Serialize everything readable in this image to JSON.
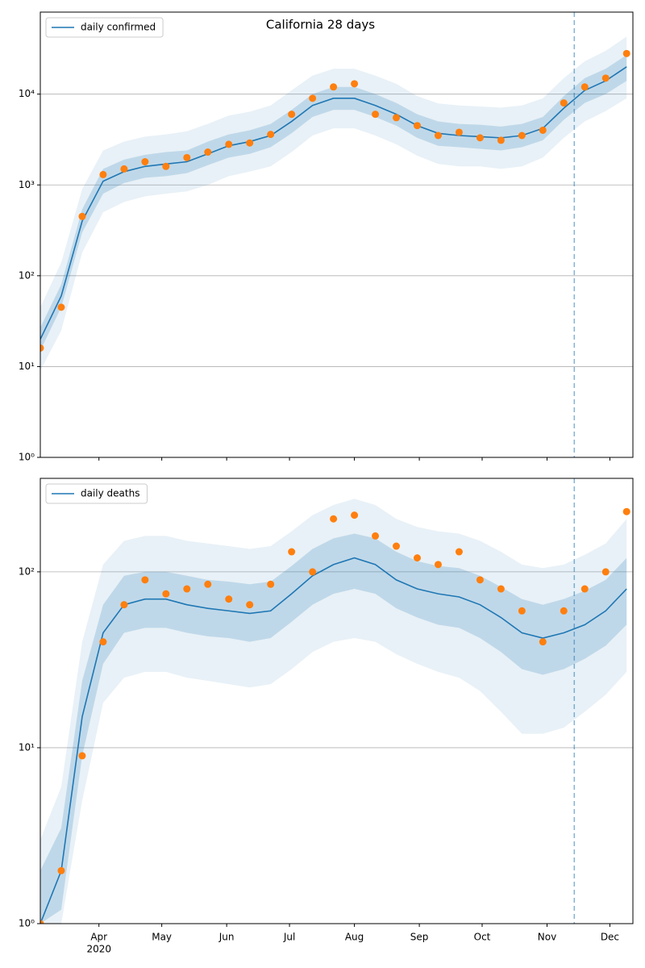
{
  "chart_data": [
    {
      "type": "line",
      "title": "California 28 days",
      "log_y": true,
      "grid": true,
      "legend": "upper left",
      "x": [
        64,
        74,
        84,
        94,
        104,
        114,
        124,
        134,
        144,
        154,
        164,
        174,
        184,
        194,
        204,
        214,
        224,
        234,
        244,
        254,
        264,
        274,
        284,
        294,
        304,
        314,
        324,
        334,
        344
      ],
      "xlim": [
        64,
        347
      ],
      "xticks": [
        92,
        122,
        153,
        183,
        214,
        245,
        275,
        306,
        336
      ],
      "ylim": [
        1,
        80000
      ],
      "yticks": [
        {
          "value": 1,
          "label": "10⁰"
        },
        {
          "value": 10,
          "label": "10¹"
        },
        {
          "value": 100,
          "label": "10²"
        },
        {
          "value": 1000,
          "label": "10³"
        },
        {
          "value": 10000,
          "label": "10⁴"
        }
      ],
      "series": [
        {
          "name": "daily confirmed",
          "color": "#1f77b4",
          "values": [
            20,
            60,
            400,
            1100,
            1400,
            1600,
            1700,
            1800,
            2200,
            2700,
            3000,
            3500,
            5000,
            7500,
            9000,
            9000,
            7500,
            6000,
            4500,
            3700,
            3500,
            3400,
            3300,
            3500,
            4200,
            7000,
            11000,
            14000,
            20000
          ]
        }
      ],
      "bands": [
        {
          "color": "#1f77b4",
          "opacity": 0.1,
          "lower": [
            9,
            25,
            180,
            500,
            650,
            750,
            800,
            850,
            1000,
            1250,
            1400,
            1600,
            2300,
            3500,
            4200,
            4200,
            3500,
            2800,
            2100,
            1700,
            1600,
            1600,
            1500,
            1600,
            2000,
            3300,
            5000,
            6500,
            9000
          ],
          "upper": [
            45,
            140,
            900,
            2400,
            3000,
            3400,
            3600,
            3900,
            4700,
            5800,
            6400,
            7500,
            11000,
            16000,
            19000,
            19000,
            16000,
            13000,
            9500,
            7900,
            7500,
            7300,
            7100,
            7500,
            9000,
            15000,
            23000,
            30000,
            43000
          ]
        },
        {
          "color": "#1f77b4",
          "opacity": 0.2,
          "lower": [
            15,
            45,
            300,
            800,
            1050,
            1200,
            1250,
            1350,
            1650,
            2000,
            2200,
            2600,
            3700,
            5600,
            6700,
            6700,
            5600,
            4500,
            3300,
            2700,
            2600,
            2500,
            2400,
            2600,
            3100,
            5200,
            8000,
            10000,
            14000
          ],
          "upper": [
            27,
            80,
            540,
            1500,
            1900,
            2150,
            2300,
            2400,
            3000,
            3600,
            4000,
            4700,
            6700,
            10000,
            12000,
            12000,
            10000,
            8000,
            6000,
            5000,
            4700,
            4600,
            4400,
            4700,
            5600,
            9500,
            15000,
            19000,
            27000
          ]
        }
      ],
      "points": {
        "color": "#ff7f0e",
        "values": [
          16,
          45,
          450,
          1300,
          1500,
          1800,
          1600,
          2000,
          2300,
          2800,
          2900,
          3600,
          6000,
          9000,
          12000,
          13000,
          6000,
          5500,
          4500,
          3500,
          3800,
          3300,
          3100,
          3500,
          4000,
          8000,
          12000,
          15000,
          28000
        ]
      },
      "vline": {
        "value": 319,
        "color": "#1f77b4"
      }
    },
    {
      "type": "line",
      "log_y": true,
      "grid": true,
      "legend": "upper left",
      "x": [
        64,
        74,
        84,
        94,
        104,
        114,
        124,
        134,
        144,
        154,
        164,
        174,
        184,
        194,
        204,
        214,
        224,
        234,
        244,
        254,
        264,
        274,
        284,
        294,
        304,
        314,
        324,
        334,
        344
      ],
      "xlim": [
        64,
        347
      ],
      "xticks": [
        {
          "value": 92,
          "label": "Apr"
        },
        {
          "value": 122,
          "label": "May"
        },
        {
          "value": 153,
          "label": "Jun"
        },
        {
          "value": 183,
          "label": "Jul"
        },
        {
          "value": 214,
          "label": "Aug"
        },
        {
          "value": 245,
          "label": "Sep"
        },
        {
          "value": 275,
          "label": "Oct"
        },
        {
          "value": 306,
          "label": "Nov"
        },
        {
          "value": 336,
          "label": "Dec"
        }
      ],
      "x_sublabel": "2020",
      "ylim": [
        1,
        340
      ],
      "yticks": [
        {
          "value": 1,
          "label": "10⁰"
        },
        {
          "value": 10,
          "label": "10¹"
        },
        {
          "value": 100,
          "label": "10²"
        }
      ],
      "series": [
        {
          "name": "daily deaths",
          "color": "#1f77b4",
          "values": [
            1,
            2,
            15,
            45,
            65,
            70,
            70,
            65,
            62,
            60,
            58,
            60,
            75,
            95,
            110,
            120,
            110,
            90,
            80,
            75,
            72,
            65,
            55,
            45,
            42,
            45,
            50,
            60,
            80
          ]
        }
      ],
      "bands": [
        {
          "color": "#1f77b4",
          "opacity": 0.1,
          "lower": [
            1,
            1,
            5,
            18,
            25,
            27,
            27,
            25,
            24,
            23,
            22,
            23,
            28,
            35,
            40,
            42,
            40,
            34,
            30,
            27,
            25,
            21,
            16,
            12,
            12,
            13,
            16,
            20,
            27
          ],
          "upper": [
            3,
            6,
            40,
            110,
            150,
            160,
            160,
            150,
            145,
            140,
            135,
            140,
            170,
            210,
            240,
            260,
            240,
            200,
            180,
            170,
            165,
            150,
            130,
            110,
            105,
            110,
            125,
            145,
            200
          ]
        },
        {
          "color": "#1f77b4",
          "opacity": 0.2,
          "lower": [
            1,
            1.2,
            9,
            30,
            45,
            48,
            48,
            45,
            43,
            42,
            40,
            42,
            52,
            65,
            75,
            80,
            75,
            62,
            55,
            50,
            48,
            42,
            35,
            28,
            26,
            28,
            32,
            38,
            50
          ],
          "upper": [
            2,
            3.5,
            24,
            65,
            95,
            100,
            100,
            95,
            90,
            88,
            85,
            88,
            108,
            135,
            155,
            165,
            155,
            130,
            115,
            108,
            105,
            95,
            82,
            70,
            65,
            70,
            78,
            90,
            120
          ]
        }
      ],
      "points": {
        "color": "#ff7f0e",
        "values": [
          1,
          2,
          9,
          40,
          65,
          90,
          75,
          80,
          85,
          70,
          65,
          85,
          130,
          100,
          200,
          210,
          160,
          140,
          120,
          110,
          130,
          90,
          80,
          60,
          40,
          60,
          80,
          100,
          220
        ]
      },
      "vline": {
        "value": 319,
        "color": "#1f77b4"
      }
    }
  ]
}
